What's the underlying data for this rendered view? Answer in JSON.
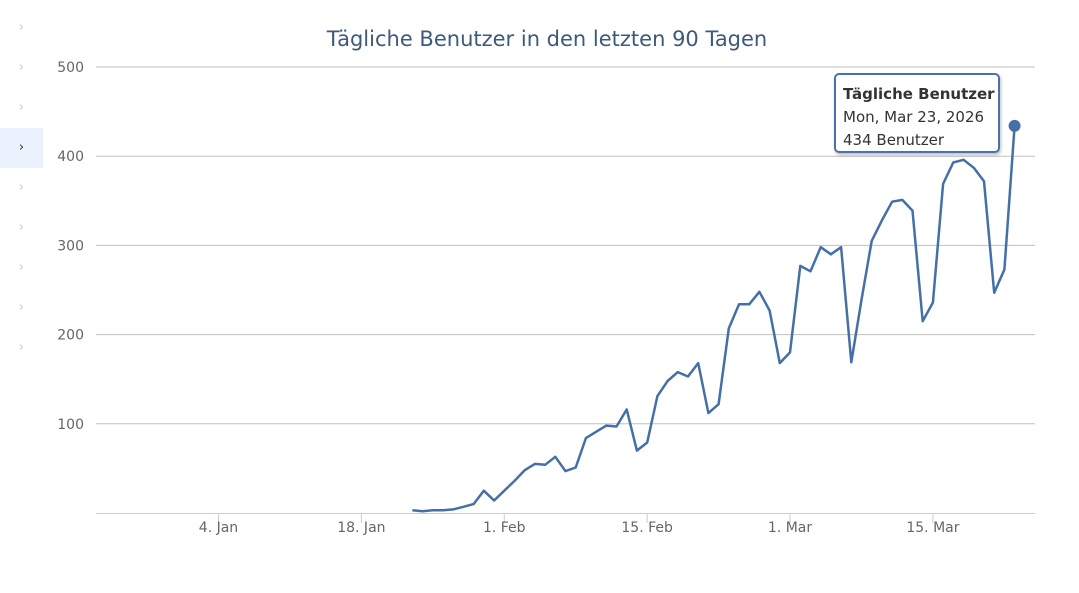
{
  "sidebar": {
    "items": [
      "›",
      "›",
      "›",
      "›",
      "›",
      "›",
      "›",
      "›",
      "›"
    ],
    "active_index": 3
  },
  "chart_data": {
    "type": "line",
    "title": "Tägliche Benutzer in den letzten 90 Tagen",
    "xlabel": "",
    "ylabel": "",
    "series": [
      {
        "name": "Tägliche Benutzer",
        "color": "#4470a7",
        "start_date": "2026-01-23",
        "values": [
          3,
          2,
          3,
          3,
          4,
          7,
          10,
          25,
          14,
          25,
          36,
          48,
          55,
          54,
          63,
          47,
          51,
          84,
          91,
          98,
          97,
          116,
          70,
          79,
          131,
          148,
          158,
          153,
          168,
          112,
          122,
          207,
          234,
          234,
          248,
          227,
          168,
          180,
          277,
          271,
          298,
          290,
          298,
          169,
          239,
          305,
          328,
          349,
          351,
          339,
          215,
          236,
          369,
          393,
          396,
          387,
          372,
          247,
          273,
          434
        ]
      }
    ],
    "xlim": [
      "2025-12-23",
      "2026-03-25"
    ],
    "ylim": [
      0,
      500
    ],
    "y_ticks": [
      100,
      200,
      300,
      400,
      500
    ],
    "x_ticks": [
      {
        "label": "4. Jan",
        "date": "2026-01-04"
      },
      {
        "label": "18. Jan",
        "date": "2026-01-18"
      },
      {
        "label": "1. Feb",
        "date": "2026-02-01"
      },
      {
        "label": "15. Feb",
        "date": "2026-02-15"
      },
      {
        "label": "1. Mar",
        "date": "2026-03-01"
      },
      {
        "label": "15. Mar",
        "date": "2026-03-15"
      }
    ],
    "grid": true,
    "tooltip": {
      "title": "Tägliche Benutzer",
      "date": "Mon, Mar 23, 2026",
      "value": "434 Benutzer"
    }
  }
}
